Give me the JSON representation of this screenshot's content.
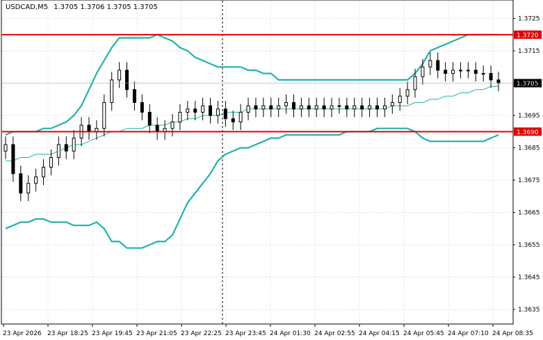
{
  "header": {
    "symbol_tf": "USDCAD,M5",
    "ohlc": "1.3705 1.3706 1.3705 1.3705"
  },
  "colors": {
    "background": "#ffffff",
    "grid": "#c8c8c8",
    "candles": "#000000",
    "bands": "#20b2aa",
    "level_lines": "#e00000",
    "current_price_bg": "#000000",
    "current_price_text": "#ffffff",
    "level_tag_bg": "#e00000",
    "level_tag_text": "#ffffff"
  },
  "chart_data": {
    "type": "candlestick",
    "title": "USDCAD,M5 1.3705 1.3706 1.3705 1.3705",
    "y_axis": {
      "position": "right",
      "ticks": [
        "1.3725",
        "1.3715",
        "1.3705",
        "1.3695",
        "1.3685",
        "1.3675",
        "1.3665",
        "1.3655",
        "1.3645",
        "1.3635"
      ],
      "range": [
        1.36305,
        1.37305
      ]
    },
    "x_axis": {
      "ticks": [
        "23 Apr 2026",
        "23 Apr 18:25",
        "23 Apr 19:45",
        "23 Apr 21:05",
        "23 Apr 22:25",
        "23 Apr 23:45",
        "24 Apr 01:30",
        "24 Apr 02:55",
        "24 Apr 04:15",
        "24 Apr 05:45",
        "24 Apr 07:10",
        "24 Apr 08:35"
      ]
    },
    "grid": true,
    "day_separator": "23 Apr 23:45",
    "horizontal_levels": [
      {
        "value": 1.372,
        "label": "1.3720"
      },
      {
        "value": 1.369,
        "label": "1.3690"
      }
    ],
    "current_price": {
      "value": 1.3705,
      "label": "1.3705"
    },
    "close": [
      1.3686,
      1.3677,
      1.3671,
      1.3674,
      1.3676,
      1.3679,
      1.3682,
      1.3686,
      1.3684,
      1.3688,
      1.3692,
      1.369,
      1.3691,
      1.3699,
      1.3706,
      1.3709,
      1.3703,
      1.3699,
      1.3696,
      1.3692,
      1.369,
      1.3691,
      1.3693,
      1.3696,
      1.3697,
      1.3696,
      1.3698,
      1.3695,
      1.3697,
      1.3694,
      1.3693,
      1.3696,
      1.3698,
      1.3697,
      1.3698,
      1.3697,
      1.3698,
      1.3699,
      1.3697,
      1.3698,
      1.3697,
      1.3698,
      1.3697,
      1.3698,
      1.3698,
      1.3697,
      1.3698,
      1.3697,
      1.3698,
      1.3697,
      1.3698,
      1.3699,
      1.3701,
      1.3703,
      1.3707,
      1.371,
      1.3712,
      1.3709,
      1.3708,
      1.3709,
      1.3709,
      1.3709,
      1.3708,
      1.3708,
      1.3706,
      1.3705
    ],
    "series": [
      {
        "name": "Bollinger upper",
        "values": [
          1.3689,
          1.369,
          1.369,
          1.369,
          1.369,
          1.3691,
          1.3691,
          1.3692,
          1.3693,
          1.3695,
          1.3698,
          1.3703,
          1.3708,
          1.3712,
          1.3716,
          1.3719,
          1.3719,
          1.3719,
          1.3719,
          1.3719,
          1.372,
          1.3719,
          1.3718,
          1.3716,
          1.3715,
          1.3713,
          1.3712,
          1.3711,
          1.371,
          1.371,
          1.371,
          1.371,
          1.3709,
          1.3709,
          1.3708,
          1.3708,
          1.3706,
          1.3706,
          1.3706,
          1.3706,
          1.3706,
          1.3706,
          1.3706,
          1.3706,
          1.3706,
          1.3706,
          1.3706,
          1.3706,
          1.3706,
          1.3706,
          1.3706,
          1.3706,
          1.3706,
          1.3706,
          1.3708,
          1.3711,
          1.3715,
          1.3716,
          1.3717,
          1.3718,
          1.3719,
          1.372,
          1.372,
          1.372,
          1.372,
          1.372
        ]
      },
      {
        "name": "Bollinger middle",
        "values": [
          1.3681,
          1.3681,
          1.3682,
          1.3682,
          1.3683,
          1.3683,
          1.3683,
          1.3684,
          1.3685,
          1.3686,
          1.3686,
          1.3687,
          1.3688,
          1.3689,
          1.369,
          1.369,
          1.3691,
          1.3691,
          1.3691,
          1.3692,
          1.3692,
          1.3692,
          1.3693,
          1.3693,
          1.3694,
          1.3694,
          1.3695,
          1.3695,
          1.3695,
          1.3696,
          1.3696,
          1.3696,
          1.3697,
          1.3697,
          1.3697,
          1.3697,
          1.3697,
          1.3697,
          1.3697,
          1.3697,
          1.3697,
          1.3697,
          1.3697,
          1.3697,
          1.3697,
          1.3697,
          1.3697,
          1.3697,
          1.3697,
          1.3697,
          1.3697,
          1.3698,
          1.3698,
          1.3698,
          1.3699,
          1.3699,
          1.37,
          1.37,
          1.3701,
          1.3701,
          1.3702,
          1.3702,
          1.3703,
          1.3703,
          1.3704,
          1.3704
        ]
      },
      {
        "name": "Bollinger lower",
        "values": [
          1.366,
          1.3661,
          1.3662,
          1.3662,
          1.3663,
          1.3663,
          1.3662,
          1.3662,
          1.3662,
          1.3661,
          1.3661,
          1.3661,
          1.3662,
          1.366,
          1.3656,
          1.3656,
          1.3654,
          1.3654,
          1.3654,
          1.3655,
          1.3656,
          1.3656,
          1.3658,
          1.3663,
          1.3668,
          1.3671,
          1.3674,
          1.3677,
          1.3681,
          1.3683,
          1.3684,
          1.3685,
          1.3685,
          1.3686,
          1.3687,
          1.3688,
          1.3688,
          1.3689,
          1.3689,
          1.3689,
          1.3689,
          1.3689,
          1.3689,
          1.3689,
          1.3689,
          1.369,
          1.369,
          1.369,
          1.369,
          1.3691,
          1.3691,
          1.3691,
          1.3691,
          1.3691,
          1.369,
          1.3688,
          1.3687,
          1.3687,
          1.3687,
          1.3687,
          1.3687,
          1.3687,
          1.3687,
          1.3687,
          1.3688,
          1.3689
        ]
      }
    ]
  }
}
